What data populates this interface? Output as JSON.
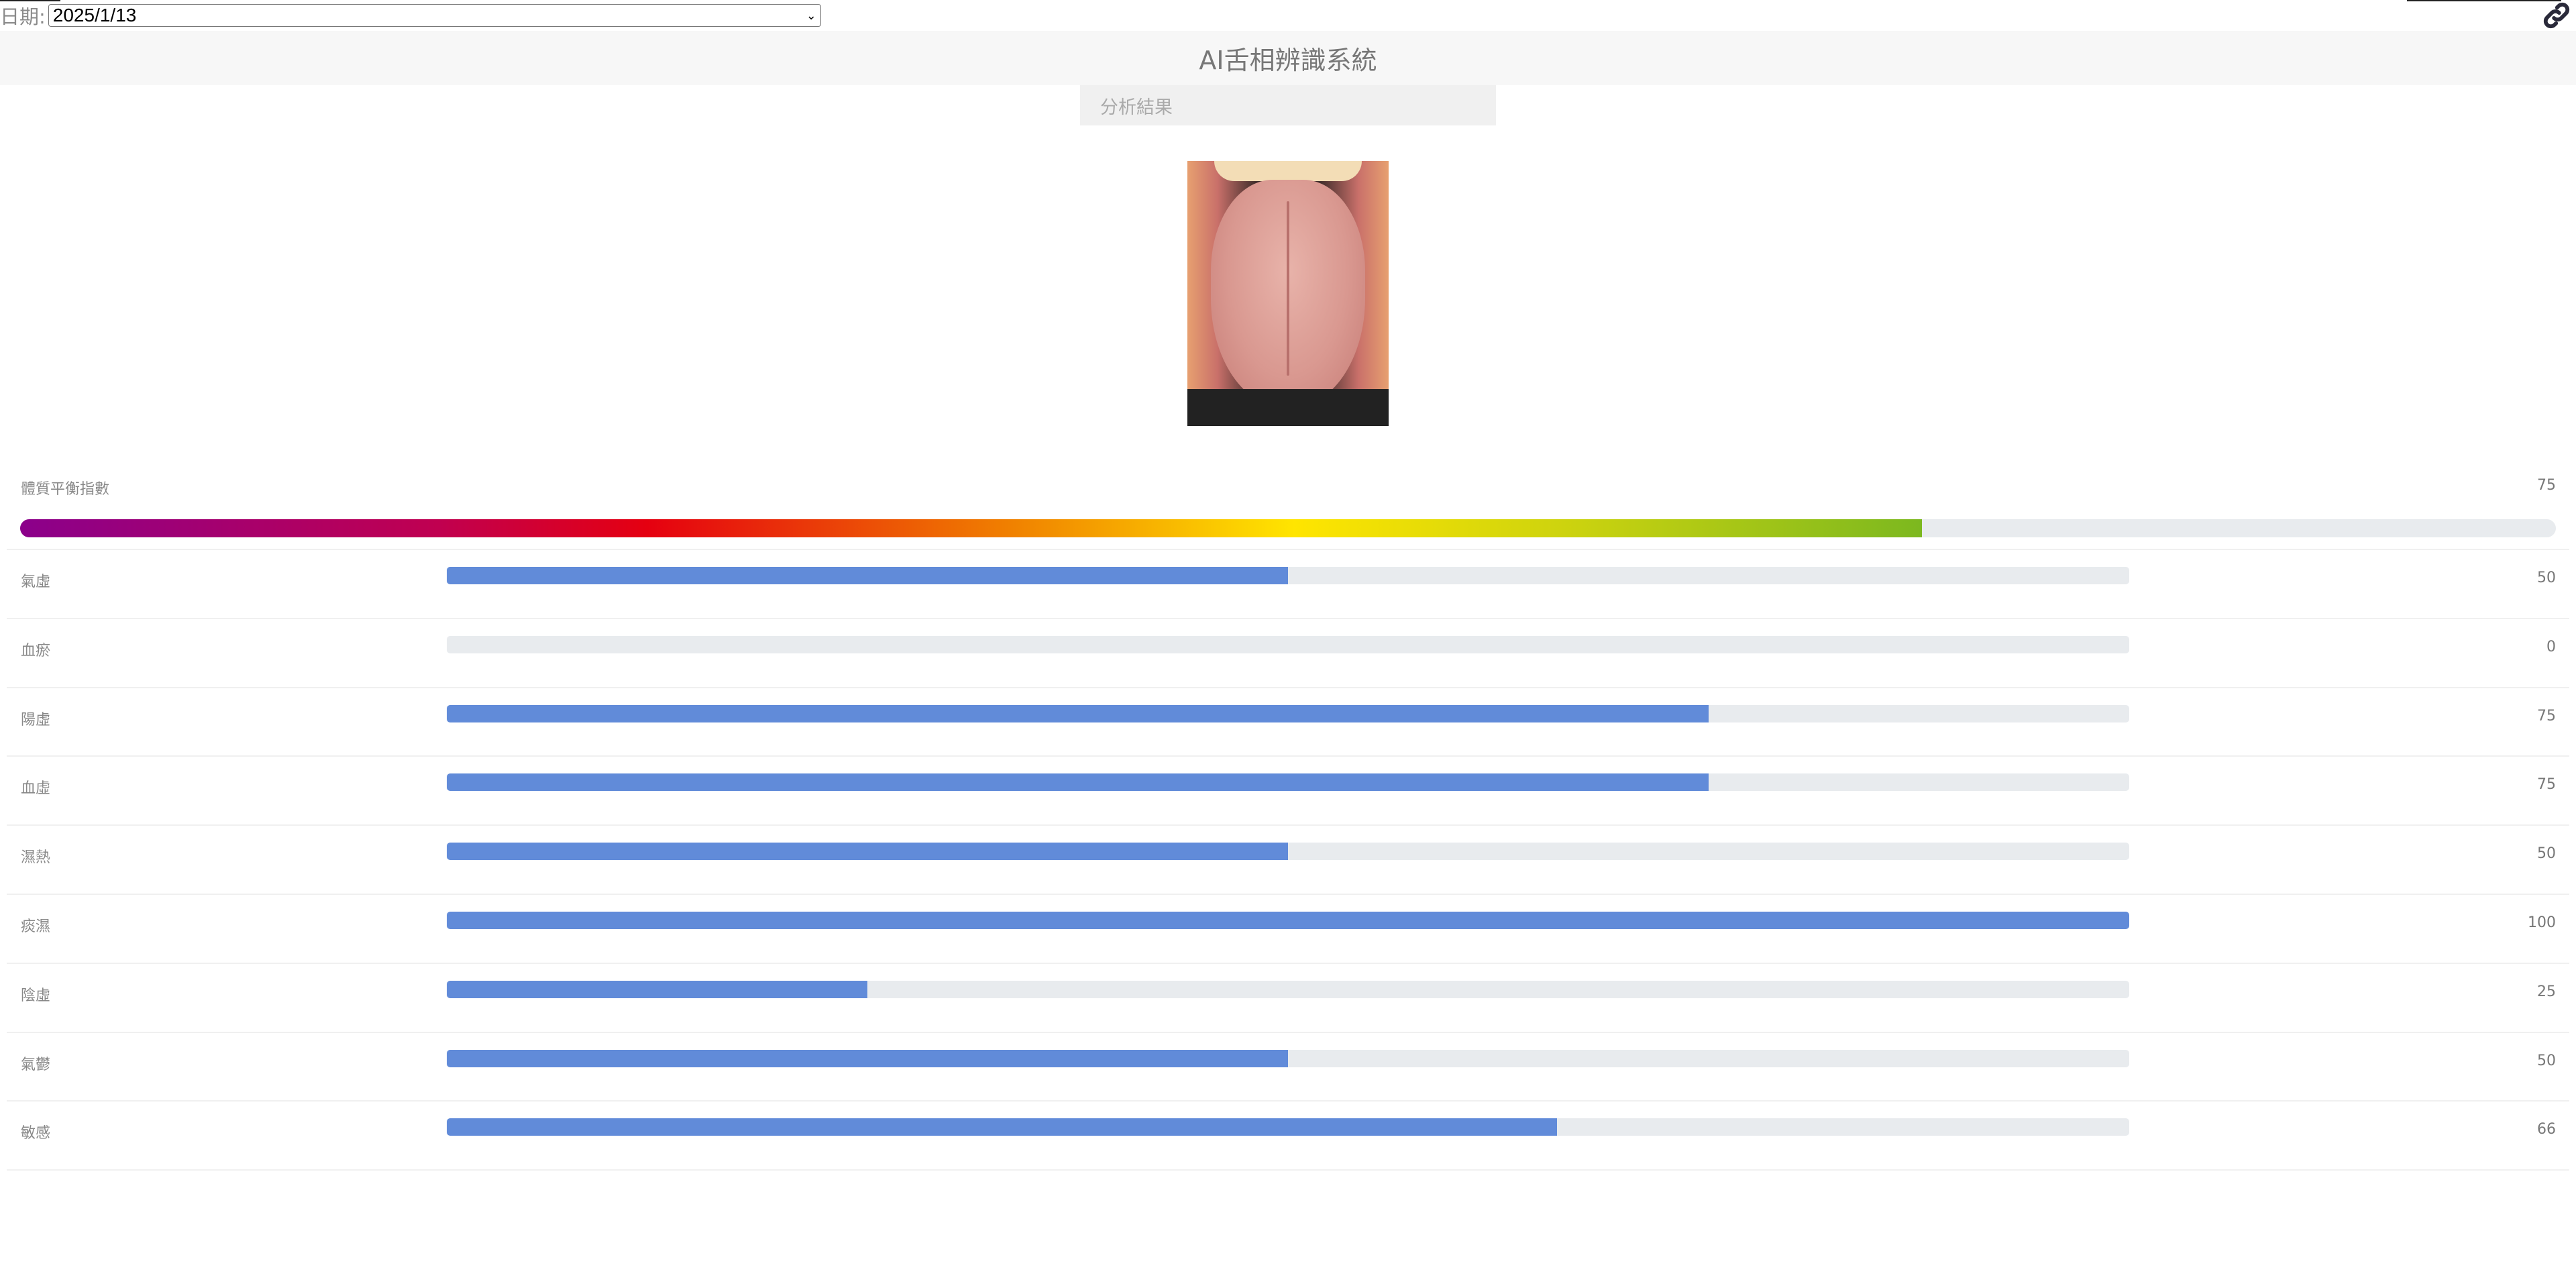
{
  "date_filter": {
    "label": "日期:",
    "selected": "2025/1/13"
  },
  "header": {
    "title": "AI舌相辨識系統"
  },
  "tabs": [
    {
      "label": "分析結果"
    }
  ],
  "colors": {
    "bar": "#618bd9",
    "track": "#e8ebee",
    "gradient": [
      "#8b008b",
      "#e50010",
      "#ffe500",
      "#7cb81f"
    ]
  },
  "balance_index": {
    "label": "體質平衡指數",
    "value": 75,
    "max": 100
  },
  "metrics": [
    {
      "label": "氣虛",
      "value": 50
    },
    {
      "label": "血瘀",
      "value": 0
    },
    {
      "label": "陽虛",
      "value": 75
    },
    {
      "label": "血虛",
      "value": 75
    },
    {
      "label": "濕熱",
      "value": 50
    },
    {
      "label": "痰濕",
      "value": 100
    },
    {
      "label": "陰虛",
      "value": 25
    },
    {
      "label": "氣鬱",
      "value": 50
    },
    {
      "label": "敏感",
      "value": 66
    }
  ]
}
